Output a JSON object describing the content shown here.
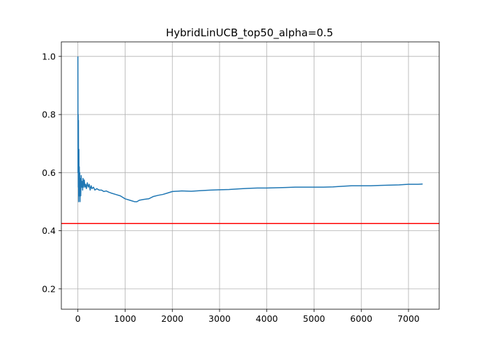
{
  "chart_data": {
    "type": "line",
    "title": "HybridLinUCB_top50_alpha=0.5",
    "xlabel": "",
    "ylabel": "",
    "xlim": [
      -350,
      7650
    ],
    "ylim": [
      0.13,
      1.05
    ],
    "grid": true,
    "legend": "none",
    "xticks": [
      0,
      1000,
      2000,
      3000,
      4000,
      5000,
      6000,
      7000
    ],
    "xtick_labels": [
      "0",
      "1000",
      "2000",
      "3000",
      "4000",
      "5000",
      "6000",
      "7000"
    ],
    "yticks": [
      0.2,
      0.4,
      0.6,
      0.8,
      1.0
    ],
    "ytick_labels": [
      "0.2",
      "0.4",
      "0.6",
      "0.8",
      "1.0"
    ],
    "series": [
      {
        "color": "#1f77b4",
        "x": [
          0,
          3,
          6,
          9,
          12,
          15,
          18,
          22,
          26,
          30,
          35,
          40,
          45,
          50,
          60,
          70,
          80,
          90,
          100,
          110,
          120,
          135,
          150,
          165,
          180,
          200,
          220,
          240,
          260,
          280,
          300,
          330,
          360,
          400,
          450,
          500,
          550,
          600,
          650,
          700,
          800,
          900,
          1000,
          1100,
          1200,
          1250,
          1300,
          1400,
          1500,
          1600,
          1700,
          1800,
          1900,
          2000,
          2200,
          2400,
          2600,
          2800,
          3000,
          3200,
          3400,
          3600,
          3800,
          4000,
          4200,
          4400,
          4600,
          4800,
          5000,
          5200,
          5400,
          5600,
          5800,
          6000,
          6200,
          6400,
          6600,
          6800,
          7000,
          7200,
          7300
        ],
        "y": [
          1.0,
          0.6,
          0.8,
          0.55,
          0.78,
          0.5,
          0.6,
          0.68,
          0.52,
          0.62,
          0.55,
          0.6,
          0.5,
          0.58,
          0.52,
          0.59,
          0.55,
          0.57,
          0.54,
          0.58,
          0.55,
          0.575,
          0.55,
          0.56,
          0.545,
          0.565,
          0.55,
          0.56,
          0.54,
          0.555,
          0.545,
          0.55,
          0.54,
          0.545,
          0.54,
          0.54,
          0.535,
          0.537,
          0.533,
          0.53,
          0.525,
          0.52,
          0.51,
          0.505,
          0.5,
          0.5,
          0.505,
          0.508,
          0.51,
          0.518,
          0.522,
          0.525,
          0.53,
          0.535,
          0.537,
          0.536,
          0.538,
          0.54,
          0.541,
          0.542,
          0.544,
          0.546,
          0.547,
          0.547,
          0.548,
          0.549,
          0.55,
          0.55,
          0.55,
          0.55,
          0.551,
          0.553,
          0.555,
          0.555,
          0.555,
          0.556,
          0.557,
          0.558,
          0.56,
          0.56,
          0.561
        ]
      }
    ],
    "reference_line": {
      "y": 0.425,
      "color": "#ff0000"
    }
  }
}
